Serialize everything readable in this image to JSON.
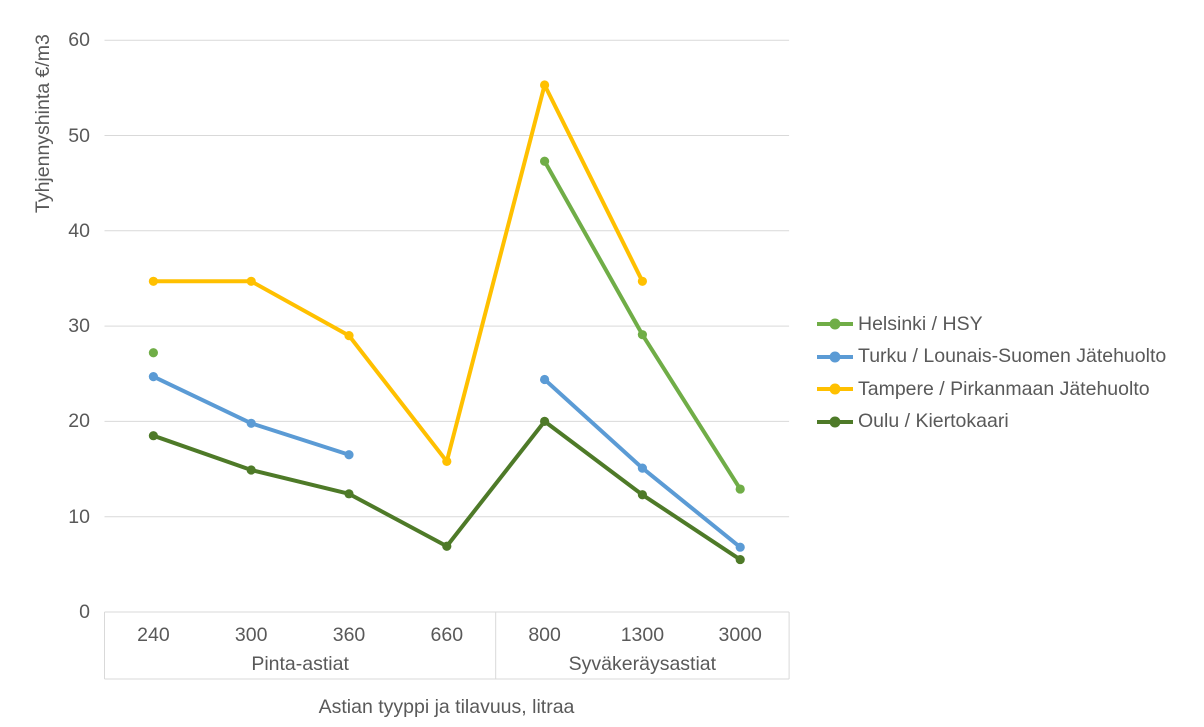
{
  "chart_data": {
    "type": "line",
    "title": "",
    "ylabel": "Tyhjennyshinta €/m3",
    "xlabel": "Astian tyyppi ja tilavuus, litraa",
    "ylim": [
      0,
      60
    ],
    "yticks": [
      0,
      10,
      20,
      30,
      40,
      50,
      60
    ],
    "grid": "horizontal",
    "legend_position": "right",
    "categories": [
      "240",
      "300",
      "360",
      "660",
      "800",
      "1300",
      "3000"
    ],
    "category_groups": [
      {
        "label": "Pinta-astiat",
        "span": 4
      },
      {
        "label": "Syväkeräysastiat",
        "span": 3
      }
    ],
    "series": [
      {
        "name": "Helsinki / HSY",
        "color": "#70AD47",
        "values": [
          27.2,
          null,
          null,
          null,
          47.3,
          29.1,
          12.9
        ]
      },
      {
        "name": "Turku / Lounais-Suomen Jätehuolto",
        "color": "#5B9BD5",
        "values": [
          24.7,
          19.8,
          16.5,
          null,
          24.4,
          15.1,
          6.8
        ]
      },
      {
        "name": "Tampere / Pirkanmaan Jätehuolto",
        "color": "#FFC000",
        "values": [
          34.7,
          34.7,
          29.0,
          15.8,
          55.3,
          34.7,
          null
        ]
      },
      {
        "name": "Oulu / Kiertokaari",
        "color": "#4E7A28",
        "values": [
          18.5,
          14.9,
          12.4,
          6.9,
          20.0,
          12.3,
          5.5
        ]
      }
    ]
  },
  "colors": {
    "gridline": "#D9D9D9",
    "axis_frame": "#D9D9D9",
    "axis_text": "#595959",
    "background": "#FFFFFF"
  }
}
